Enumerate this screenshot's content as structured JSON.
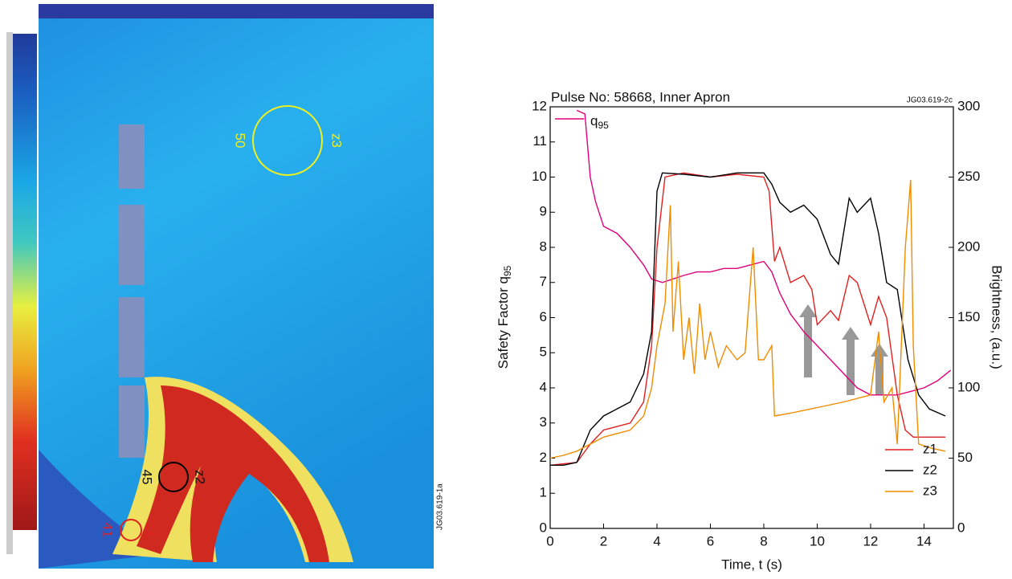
{
  "image_annotations": {
    "regions": [
      {
        "value": "50",
        "name": "z3"
      },
      {
        "value": "45",
        "name": "z2"
      },
      {
        "value": "41",
        "name": "z1"
      }
    ],
    "code": "JG03.619-1a"
  },
  "chart_data": {
    "type": "line",
    "title": "Pulse No: 58668, Inner Apron",
    "code": "JG03.619-2c",
    "x_label": "Time, t (s)",
    "y_label": {
      "text": "Safety Factor q",
      "subscript": "95"
    },
    "y2_label": "Brightness, (a.u.)",
    "xlim": [
      0,
      15.1
    ],
    "xticks": [
      0,
      2,
      4,
      6,
      8,
      10,
      12,
      14
    ],
    "ylim": [
      0,
      12
    ],
    "yticks": [
      0,
      1,
      2,
      3,
      4,
      5,
      6,
      7,
      8,
      9,
      10,
      11,
      12
    ],
    "y2lim": [
      0,
      300
    ],
    "y2ticks": [
      0,
      50,
      100,
      150,
      200,
      250,
      300
    ],
    "series": [
      {
        "name": "q",
        "name_subscript": "95",
        "color": "#e0007a",
        "axis": "y",
        "x": [
          1.0,
          1.3,
          1.5,
          1.7,
          2.0,
          2.5,
          3.0,
          3.5,
          3.8,
          4.2,
          4.6,
          5.0,
          5.5,
          6.0,
          6.5,
          7.0,
          7.5,
          8.0,
          8.3,
          8.6,
          9.0,
          9.5,
          10.0,
          10.5,
          11.0,
          11.5,
          12.0,
          12.5,
          13.0,
          13.5,
          14.0,
          14.5,
          15.0
        ],
        "values": [
          11.9,
          11.8,
          10.0,
          9.3,
          8.6,
          8.4,
          8.0,
          7.5,
          7.1,
          7.0,
          7.1,
          7.2,
          7.3,
          7.3,
          7.4,
          7.4,
          7.5,
          7.6,
          7.3,
          6.7,
          6.1,
          5.6,
          5.2,
          4.8,
          4.4,
          4.0,
          3.8,
          3.8,
          3.8,
          3.9,
          4.0,
          4.2,
          4.5
        ]
      },
      {
        "name": "z1",
        "color": "#e02020",
        "axis": "y2",
        "x": [
          0,
          1,
          1.5,
          2,
          3,
          3.5,
          3.8,
          4,
          4.3,
          5,
          6,
          7,
          8,
          8.2,
          8.4,
          8.6,
          9,
          9.5,
          9.8,
          10,
          10.5,
          10.8,
          11.2,
          11.5,
          12,
          12.3,
          12.6,
          13,
          13.3,
          13.6,
          14.8
        ],
        "values": [
          45,
          47,
          60,
          70,
          75,
          90,
          130,
          200,
          250,
          253,
          250,
          252,
          250,
          240,
          190,
          200,
          175,
          180,
          170,
          145,
          155,
          148,
          180,
          175,
          145,
          165,
          150,
          95,
          70,
          65,
          65
        ]
      },
      {
        "name": "z2",
        "color": "#000000",
        "axis": "y2",
        "x": [
          0,
          0.5,
          1,
          1.5,
          2,
          2.5,
          3,
          3.5,
          3.8,
          4.0,
          4.2,
          5,
          6,
          7,
          8,
          8.3,
          8.6,
          9,
          9.5,
          10,
          10.5,
          10.8,
          11.2,
          11.5,
          12,
          12.3,
          12.6,
          13,
          13.4,
          13.8,
          14.2,
          14.8
        ],
        "values": [
          45,
          45,
          47,
          70,
          80,
          85,
          90,
          110,
          140,
          240,
          253,
          252,
          250,
          253,
          253,
          245,
          232,
          225,
          230,
          220,
          195,
          188,
          235,
          225,
          235,
          210,
          175,
          170,
          120,
          95,
          85,
          80
        ]
      },
      {
        "name": "z3",
        "color": "#f08c00",
        "axis": "y2",
        "x": [
          0,
          0.5,
          1,
          2,
          3,
          3.5,
          3.8,
          4.0,
          4.3,
          4.5,
          4.6,
          4.8,
          5,
          5.2,
          5.4,
          5.6,
          5.8,
          6,
          6.3,
          6.6,
          7,
          7.3,
          7.6,
          7.8,
          8,
          8.3,
          8.4,
          9,
          10,
          11,
          12,
          12.3,
          12.5,
          12.8,
          13,
          13.3,
          13.5,
          13.6,
          13.8,
          14.3,
          14.8
        ],
        "values": [
          50,
          52,
          55,
          65,
          70,
          80,
          100,
          130,
          160,
          230,
          140,
          190,
          120,
          150,
          110,
          160,
          120,
          140,
          115,
          130,
          120,
          125,
          200,
          120,
          120,
          130,
          80,
          82,
          86,
          90,
          95,
          140,
          90,
          100,
          60,
          200,
          248,
          130,
          60,
          57,
          55
        ]
      }
    ]
  }
}
